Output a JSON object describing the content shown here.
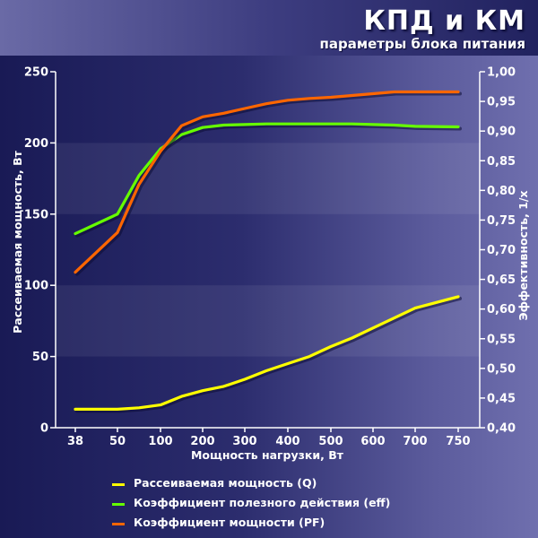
{
  "header": {
    "title": "КПД и КМ",
    "subtitle": "параметры блока питания"
  },
  "colors": {
    "q": "#ffff00",
    "eff": "#66ff00",
    "pf": "#ff6600"
  },
  "chart_data": {
    "type": "line",
    "title": "КПД и КМ",
    "subtitle": "параметры блока питания",
    "xlabel": "Мощность нагрузки, Вт",
    "ylabel": "Рассеиваемая мощность, Вт",
    "y2label": "Эффективность, 1/x",
    "categories": [
      "38",
      "50",
      "100",
      "200",
      "300",
      "400",
      "500",
      "600",
      "700",
      "750"
    ],
    "ylim": [
      0,
      250
    ],
    "yticks": [
      "0",
      "50",
      "100",
      "150",
      "200",
      "250"
    ],
    "y2lim": [
      0.4,
      1.0
    ],
    "y2ticks": [
      "0,40",
      "0,45",
      "0,50",
      "0,55",
      "0,60",
      "0,65",
      "0,70",
      "0,75",
      "0,80",
      "0,85",
      "0,90",
      "0,95",
      "1,00"
    ],
    "grid": "horizontal bands",
    "legend_position": "bottom",
    "series": [
      {
        "name": "Рассеиваемая мощность (Q)",
        "axis": "left",
        "x": [
          38,
          50,
          75,
          100,
          150,
          200,
          250,
          300,
          350,
          400,
          450,
          500,
          550,
          600,
          650,
          700,
          750
        ],
        "values": [
          13,
          13,
          14,
          16,
          22,
          26,
          29,
          34,
          40,
          45,
          50,
          57,
          63,
          70,
          77,
          84,
          92
        ]
      },
      {
        "name": "Коэффициент полезного действия (eff)",
        "axis": "right",
        "x": [
          38,
          50,
          75,
          100,
          150,
          200,
          250,
          300,
          350,
          400,
          450,
          500,
          550,
          600,
          650,
          700,
          750
        ],
        "values": [
          0.727,
          0.76,
          0.825,
          0.87,
          0.894,
          0.906,
          0.91,
          0.911,
          0.912,
          0.912,
          0.912,
          0.912,
          0.912,
          0.911,
          0.91,
          0.908,
          0.907
        ]
      },
      {
        "name": "Коэффициент мощности (PF)",
        "axis": "right",
        "x": [
          38,
          50,
          75,
          100,
          150,
          200,
          250,
          300,
          350,
          400,
          450,
          500,
          550,
          600,
          650,
          700,
          750
        ],
        "values": [
          0.662,
          0.729,
          0.81,
          0.866,
          0.909,
          0.924,
          0.93,
          0.938,
          0.946,
          0.952,
          0.955,
          0.957,
          0.96,
          0.963,
          0.966,
          0.966,
          0.966
        ]
      }
    ]
  }
}
